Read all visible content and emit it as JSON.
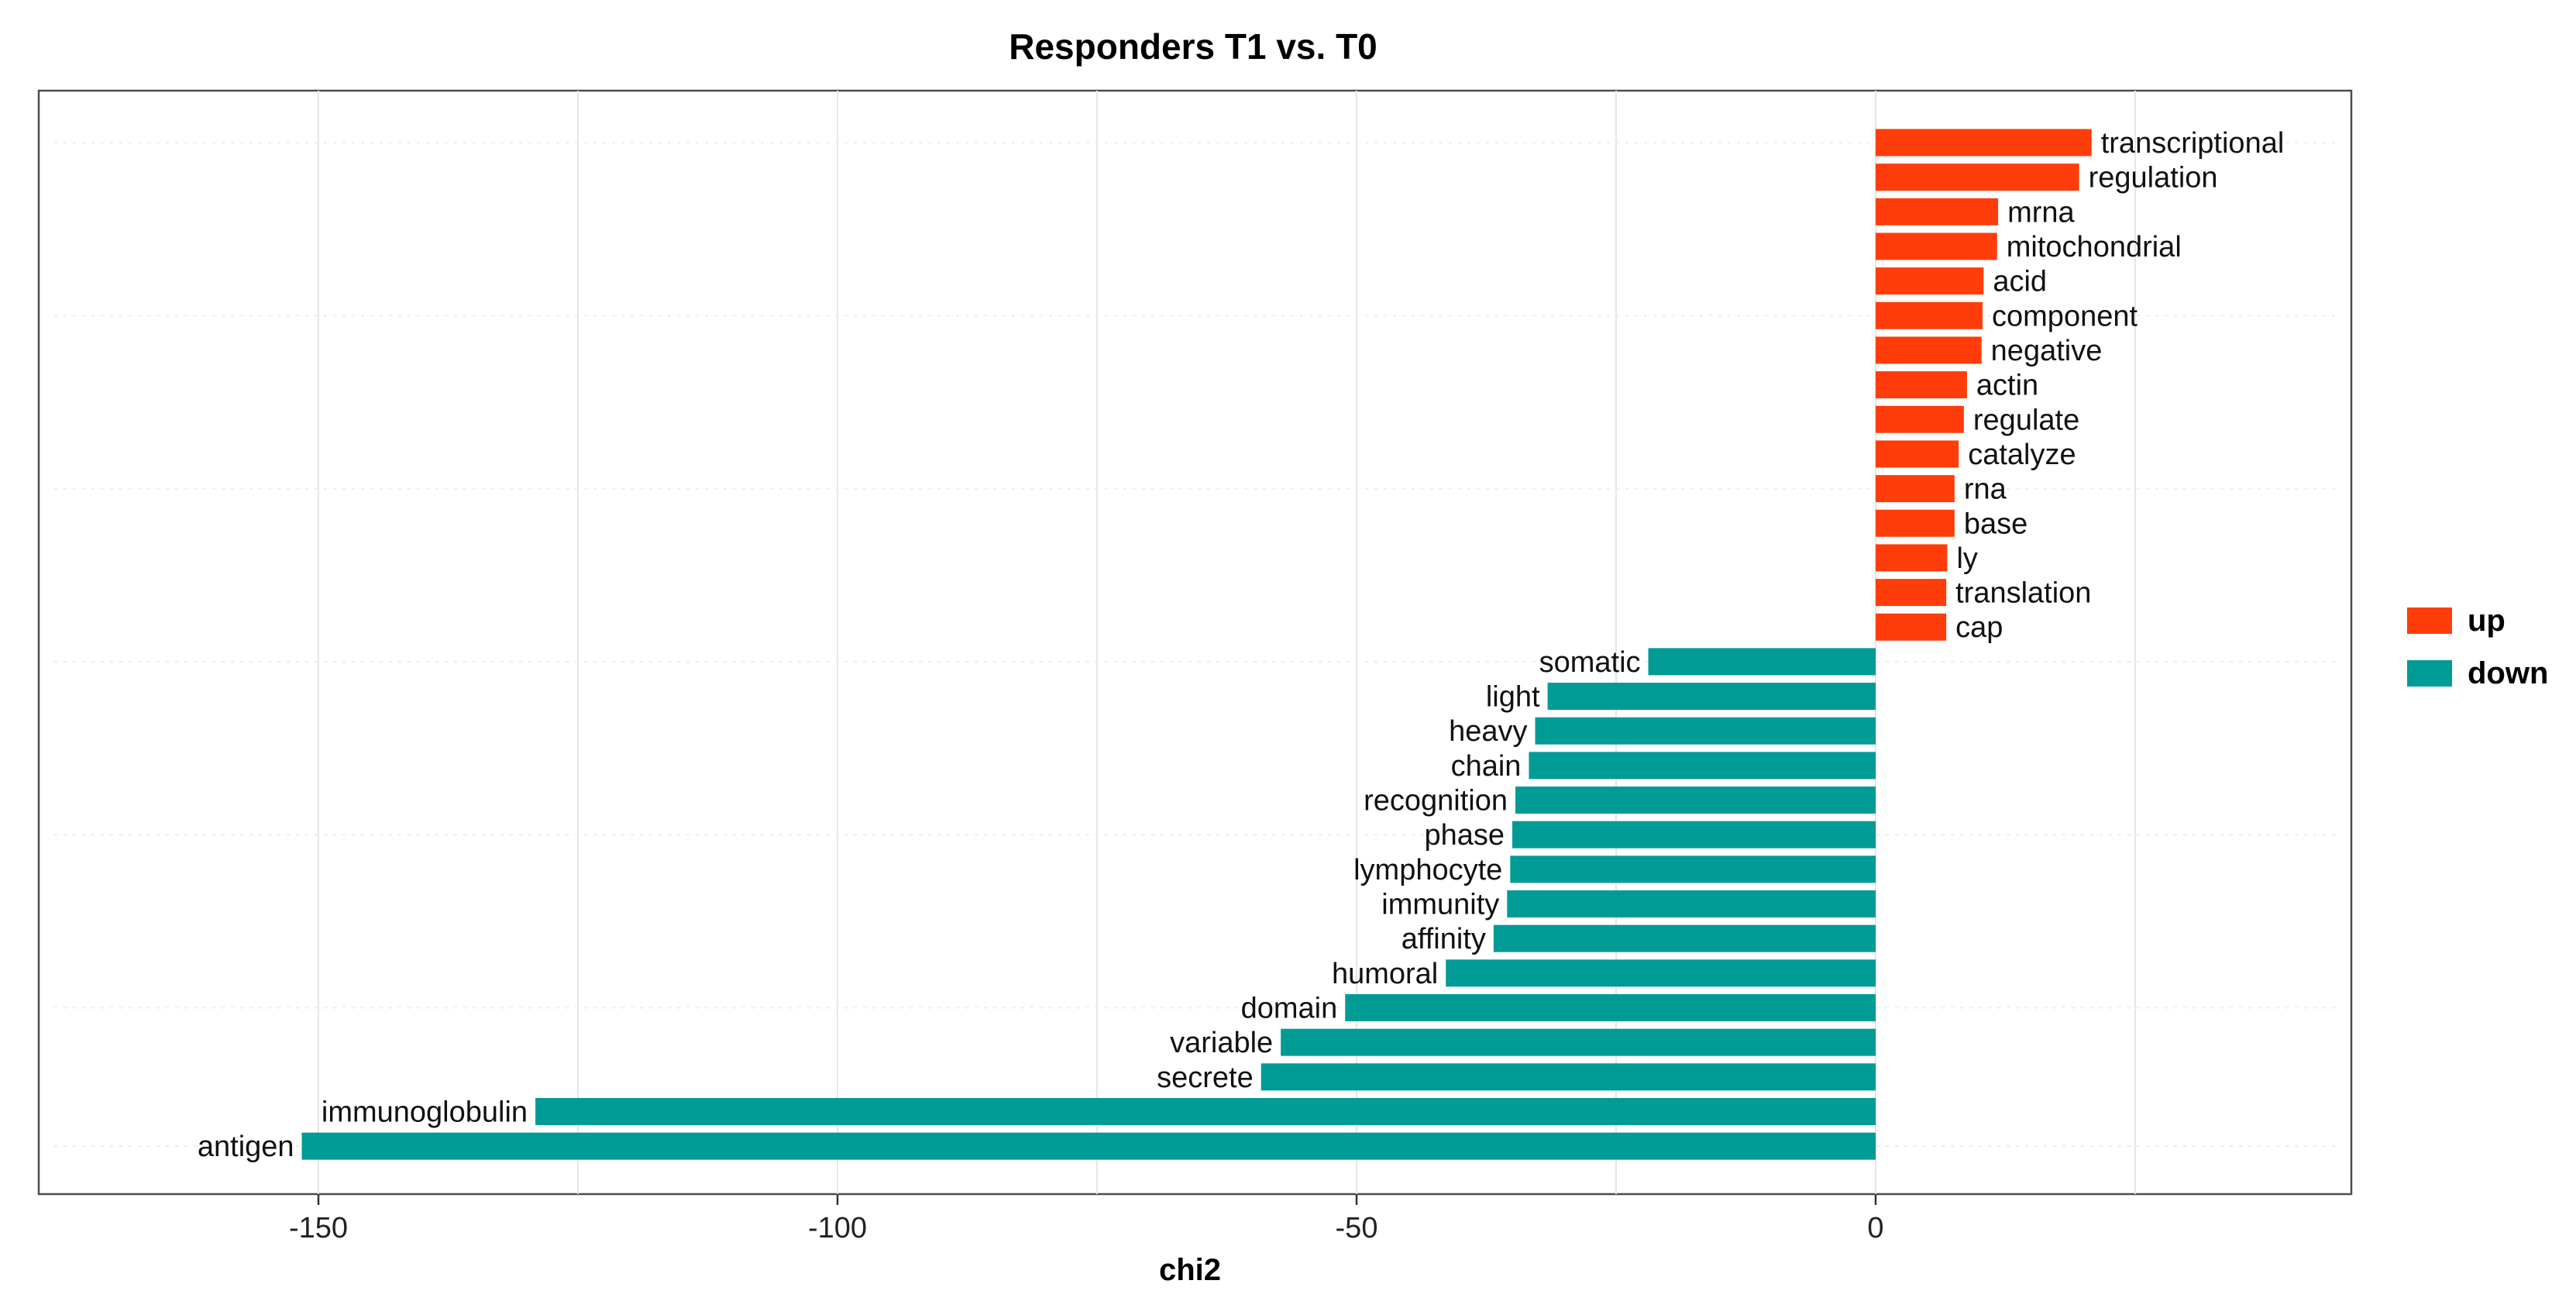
{
  "chart_data": {
    "type": "bar",
    "orientation": "horizontal",
    "title": "Responders T1 vs. T0",
    "xlabel": "chi2",
    "ylabel": "",
    "xlim": [
      -180,
      46
    ],
    "xticks": [
      -150,
      -100,
      -50,
      0
    ],
    "grid": true,
    "legend_position": "right",
    "legend": [
      {
        "key": "up",
        "label": "up",
        "color": "#FF3D0A"
      },
      {
        "key": "down",
        "label": "down",
        "color": "#009B95"
      }
    ],
    "bars": [
      {
        "label": "transcriptional",
        "value": 20.8,
        "group": "up"
      },
      {
        "label": "regulation",
        "value": 19.6,
        "group": "up"
      },
      {
        "label": "mrna",
        "value": 11.8,
        "group": "up"
      },
      {
        "label": "mitochondrial",
        "value": 11.7,
        "group": "up"
      },
      {
        "label": "acid",
        "value": 10.4,
        "group": "up"
      },
      {
        "label": "component",
        "value": 10.3,
        "group": "up"
      },
      {
        "label": "negative",
        "value": 10.2,
        "group": "up"
      },
      {
        "label": "actin",
        "value": 8.8,
        "group": "up"
      },
      {
        "label": "regulate",
        "value": 8.5,
        "group": "up"
      },
      {
        "label": "catalyze",
        "value": 8.0,
        "group": "up"
      },
      {
        "label": "rna",
        "value": 7.6,
        "group": "up"
      },
      {
        "label": "base",
        "value": 7.6,
        "group": "up"
      },
      {
        "label": "ly",
        "value": 6.9,
        "group": "up"
      },
      {
        "label": "translation",
        "value": 6.8,
        "group": "up"
      },
      {
        "label": "cap",
        "value": 6.8,
        "group": "up"
      },
      {
        "label": "somatic",
        "value": -21.9,
        "group": "down"
      },
      {
        "label": "light",
        "value": -31.6,
        "group": "down"
      },
      {
        "label": "heavy",
        "value": -32.8,
        "group": "down"
      },
      {
        "label": "chain",
        "value": -33.4,
        "group": "down"
      },
      {
        "label": "recognition",
        "value": -34.7,
        "group": "down"
      },
      {
        "label": "phase",
        "value": -35.0,
        "group": "down"
      },
      {
        "label": "lymphocyte",
        "value": -35.2,
        "group": "down"
      },
      {
        "label": "immunity",
        "value": -35.5,
        "group": "down"
      },
      {
        "label": "affinity",
        "value": -36.8,
        "group": "down"
      },
      {
        "label": "humoral",
        "value": -41.4,
        "group": "down"
      },
      {
        "label": "domain",
        "value": -51.1,
        "group": "down"
      },
      {
        "label": "variable",
        "value": -57.3,
        "group": "down"
      },
      {
        "label": "secrete",
        "value": -59.2,
        "group": "down"
      },
      {
        "label": "immunoglobulin",
        "value": -129.1,
        "group": "down"
      },
      {
        "label": "antigen",
        "value": -151.6,
        "group": "down"
      }
    ]
  }
}
